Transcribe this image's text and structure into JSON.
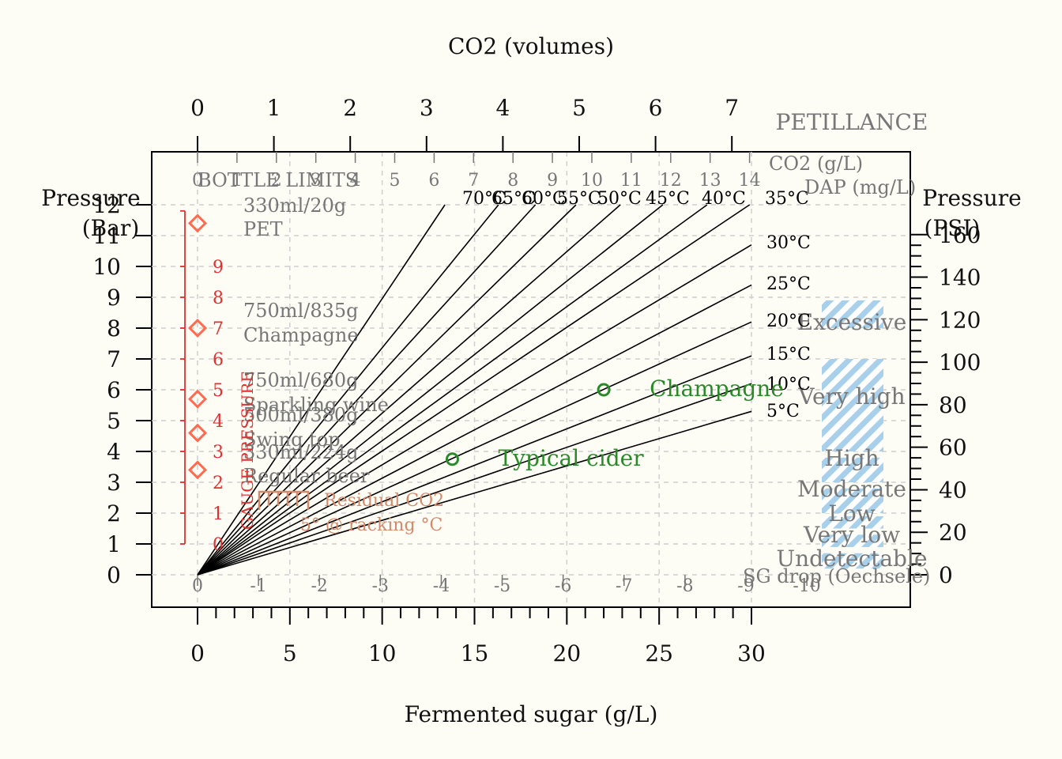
{
  "chart_data": {
    "type": "line",
    "top_title": "CO2 (volumes)",
    "xlabel": "Fermented sugar (g/L)",
    "ylabel_left": [
      "Pressure",
      "(Bar)"
    ],
    "ylabel_right": [
      "Pressure",
      "(PSI)"
    ],
    "xlim": [
      0,
      30
    ],
    "ylim": [
      0,
      12
    ],
    "x_ticks": [
      "0",
      "5",
      "10",
      "15",
      "20",
      "25",
      "30"
    ],
    "y_ticks_bar": [
      "0",
      "1",
      "2",
      "3",
      "4",
      "5",
      "6",
      "7",
      "8",
      "9",
      "10",
      "11",
      "12"
    ],
    "y_ticks_psi": [
      "0",
      "20",
      "40",
      "60",
      "80",
      "100",
      "120",
      "140",
      "160"
    ],
    "co2_volume_ticks": [
      "0",
      "1",
      "2",
      "3",
      "4",
      "5",
      "6",
      "7"
    ],
    "co2_gl_label": "CO2 (g/L)",
    "dap_label": "DAP (mg/L)",
    "co2_gl_ticks": [
      "0",
      "1",
      "2",
      "3",
      "4",
      "5",
      "6",
      "7",
      "8",
      "9",
      "10",
      "11",
      "12",
      "13",
      "14"
    ],
    "sg_label": "SG drop (Oechsele)",
    "sg_ticks": [
      "0",
      "-1",
      "-2",
      "-3",
      "-4",
      "-5",
      "-6",
      "-7",
      "-8",
      "-9",
      "-10"
    ],
    "series": [
      {
        "name": "5°C",
        "x": [
          0,
          30
        ],
        "y": [
          0,
          5.3
        ]
      },
      {
        "name": "10°C",
        "x": [
          0,
          30
        ],
        "y": [
          0,
          6.2
        ]
      },
      {
        "name": "15°C",
        "x": [
          0,
          30
        ],
        "y": [
          0,
          7.1
        ]
      },
      {
        "name": "20°C",
        "x": [
          0,
          30
        ],
        "y": [
          0,
          8.2
        ]
      },
      {
        "name": "25°C",
        "x": [
          0,
          30
        ],
        "y": [
          0,
          9.4
        ]
      },
      {
        "name": "30°C",
        "x": [
          0,
          30
        ],
        "y": [
          0,
          10.7
        ]
      },
      {
        "name": "35°C",
        "x": [
          0,
          29.9
        ],
        "y": [
          0,
          12
        ]
      },
      {
        "name": "40°C",
        "x": [
          0,
          27.6
        ],
        "y": [
          0,
          12
        ]
      },
      {
        "name": "45°C",
        "x": [
          0,
          25.2
        ],
        "y": [
          0,
          12
        ]
      },
      {
        "name": "50°C",
        "x": [
          0,
          22.9
        ],
        "y": [
          0,
          12
        ]
      },
      {
        "name": "55°C",
        "x": [
          0,
          20.5
        ],
        "y": [
          0,
          12
        ]
      },
      {
        "name": "60°C",
        "x": [
          0,
          18.3
        ],
        "y": [
          0,
          12
        ]
      },
      {
        "name": "65°C",
        "x": [
          0,
          16.3
        ],
        "y": [
          0,
          12
        ]
      },
      {
        "name": "70°C",
        "x": [
          0,
          13.4
        ],
        "y": [
          0,
          12
        ]
      }
    ],
    "points": [
      {
        "label": "Typical cider",
        "x": 13.8,
        "y": 3.75
      },
      {
        "label": "Champagne",
        "x": 22.0,
        "y": 6.0
      }
    ],
    "gauge_label": "GAUGE PRESSURE",
    "gauge_ticks": [
      "0",
      "1",
      "2",
      "3",
      "4",
      "5",
      "6",
      "7",
      "8",
      "9"
    ],
    "bottle_limits_title": "BOTTLE LIMITS",
    "bottles": [
      {
        "lines": [
          "330ml/20g",
          "PET"
        ],
        "pressure": 11.4
      },
      {
        "lines": [
          "750ml/835g",
          "Champagne"
        ],
        "pressure": 8.0
      },
      {
        "lines": [
          "750ml/680g",
          "Sparkling wine"
        ],
        "pressure": 5.7
      },
      {
        "lines": [
          "500ml/380g",
          "Swing top"
        ],
        "pressure": 4.6
      },
      {
        "lines": [
          "330ml/224g",
          "Regular beer"
        ],
        "pressure": 3.4
      }
    ],
    "residual_label": [
      "Residual CO2",
      "5° @ racking °C"
    ],
    "petillance_title": "PETILLANCE",
    "petillance": [
      {
        "label": "Excessive",
        "from": 8.0,
        "to": 8.9
      },
      {
        "label": "Very high",
        "from": 4.0,
        "to": 7.0
      },
      {
        "label": "High",
        "from": 3.0,
        "to": 3.8
      },
      {
        "label": "Moderate",
        "from": 2.0,
        "to": 2.8
      },
      {
        "label": "Low",
        "from": 1.5,
        "to": 1.9
      },
      {
        "label": "Very low",
        "from": 0.9,
        "to": 1.3
      },
      {
        "label": "Undetectable",
        "from": 0.2,
        "to": 0.7
      }
    ],
    "colors": {
      "lines": "#000000",
      "gauge": "#e03030",
      "bottle_marker": "#ff6a50",
      "residual": "#d48a6a",
      "points": "#2a8a2a",
      "hatch": "#a8d0ea",
      "grey": "#777777"
    },
    "grid": true
  }
}
